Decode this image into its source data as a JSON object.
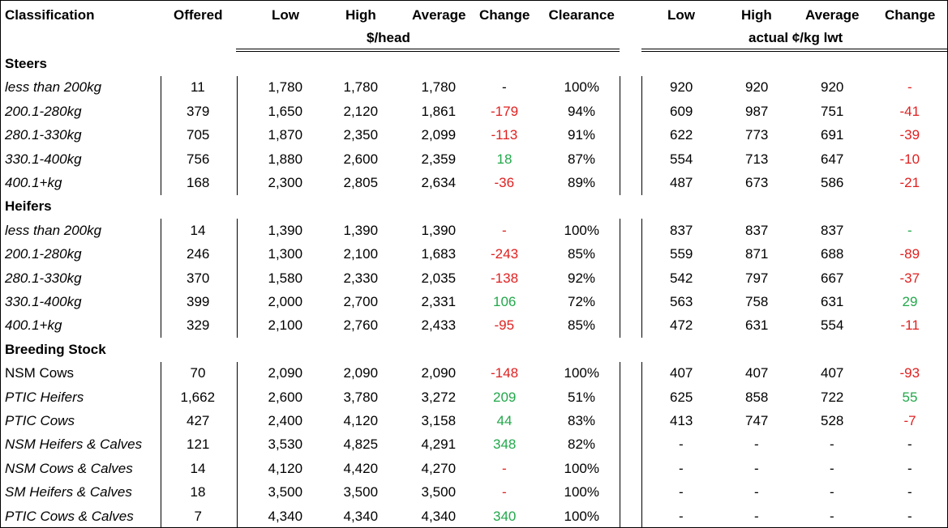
{
  "header": {
    "columns": [
      "Classification",
      "Offered",
      "Low",
      "High",
      "Average",
      "Change",
      "Clearance",
      "Low",
      "High",
      "Average",
      "Change"
    ],
    "group_head": "$/head",
    "group_kg": "actual ¢/kg lwt"
  },
  "sections": [
    {
      "title": "Steers",
      "rows": [
        {
          "italic": true,
          "cells": [
            "less than 200kg",
            "11",
            "1,780",
            "1,780",
            "1,780",
            "-",
            "100%",
            "920",
            "920",
            "920",
            "-"
          ],
          "change_colors": [
            "#000000",
            "#e02020"
          ]
        },
        {
          "italic": true,
          "cells": [
            "200.1-280kg",
            "379",
            "1,650",
            "2,120",
            "1,861",
            "-179",
            "94%",
            "609",
            "987",
            "751",
            "-41"
          ],
          "change_colors": [
            "#e02020",
            "#e02020"
          ]
        },
        {
          "italic": true,
          "cells": [
            "280.1-330kg",
            "705",
            "1,870",
            "2,350",
            "2,099",
            "-113",
            "91%",
            "622",
            "773",
            "691",
            "-39"
          ],
          "change_colors": [
            "#e02020",
            "#e02020"
          ]
        },
        {
          "italic": true,
          "cells": [
            "330.1-400kg",
            "756",
            "1,880",
            "2,600",
            "2,359",
            "18",
            "87%",
            "554",
            "713",
            "647",
            "-10"
          ],
          "change_colors": [
            "#22a84a",
            "#e02020"
          ]
        },
        {
          "italic": true,
          "cells": [
            "400.1+kg",
            "168",
            "2,300",
            "2,805",
            "2,634",
            "-36",
            "89%",
            "487",
            "673",
            "586",
            "-21"
          ],
          "change_colors": [
            "#e02020",
            "#e02020"
          ]
        }
      ]
    },
    {
      "title": "Heifers",
      "rows": [
        {
          "italic": true,
          "cells": [
            "less than 200kg",
            "14",
            "1,390",
            "1,390",
            "1,390",
            "-",
            "100%",
            "837",
            "837",
            "837",
            "-"
          ],
          "change_colors": [
            "#e02020",
            "#22a84a"
          ]
        },
        {
          "italic": true,
          "cells": [
            "200.1-280kg",
            "246",
            "1,300",
            "2,100",
            "1,683",
            "-243",
            "85%",
            "559",
            "871",
            "688",
            "-89"
          ],
          "change_colors": [
            "#e02020",
            "#e02020"
          ]
        },
        {
          "italic": true,
          "cells": [
            "280.1-330kg",
            "370",
            "1,580",
            "2,330",
            "2,035",
            "-138",
            "92%",
            "542",
            "797",
            "667",
            "-37"
          ],
          "change_colors": [
            "#e02020",
            "#e02020"
          ]
        },
        {
          "italic": true,
          "cells": [
            "330.1-400kg",
            "399",
            "2,000",
            "2,700",
            "2,331",
            "106",
            "72%",
            "563",
            "758",
            "631",
            "29"
          ],
          "change_colors": [
            "#22a84a",
            "#22a84a"
          ]
        },
        {
          "italic": true,
          "cells": [
            "400.1+kg",
            "329",
            "2,100",
            "2,760",
            "2,433",
            "-95",
            "85%",
            "472",
            "631",
            "554",
            "-11"
          ],
          "change_colors": [
            "#e02020",
            "#e02020"
          ]
        }
      ]
    },
    {
      "title": "Breeding Stock",
      "rows": [
        {
          "italic": false,
          "cells": [
            "NSM Cows",
            "70",
            "2,090",
            "2,090",
            "2,090",
            "-148",
            "100%",
            "407",
            "407",
            "407",
            "-93"
          ],
          "change_colors": [
            "#e02020",
            "#e02020"
          ]
        },
        {
          "italic": true,
          "cells": [
            "PTIC Heifers",
            "1,662",
            "2,600",
            "3,780",
            "3,272",
            "209",
            "51%",
            "625",
            "858",
            "722",
            "55"
          ],
          "change_colors": [
            "#22a84a",
            "#22a84a"
          ]
        },
        {
          "italic": true,
          "cells": [
            "PTIC Cows",
            "427",
            "2,400",
            "4,120",
            "3,158",
            "44",
            "83%",
            "413",
            "747",
            "528",
            "-7"
          ],
          "change_colors": [
            "#22a84a",
            "#e02020"
          ]
        },
        {
          "italic": true,
          "cells": [
            "NSM Heifers & Calves",
            "121",
            "3,530",
            "4,825",
            "4,291",
            "348",
            "82%",
            "-",
            "-",
            "-",
            "-"
          ],
          "change_colors": [
            "#22a84a",
            "#000000"
          ]
        },
        {
          "italic": true,
          "cells": [
            "NSM Cows & Calves",
            "14",
            "4,120",
            "4,420",
            "4,270",
            "-",
            "100%",
            "-",
            "-",
            "-",
            "-"
          ],
          "change_colors": [
            "#e02020",
            "#000000"
          ]
        },
        {
          "italic": true,
          "cells": [
            "SM Heifers & Calves",
            "18",
            "3,500",
            "3,500",
            "3,500",
            "-",
            "100%",
            "-",
            "-",
            "-",
            "-"
          ],
          "change_colors": [
            "#e02020",
            "#000000"
          ]
        },
        {
          "italic": true,
          "cells": [
            "PTIC Cows & Calves",
            "7",
            "4,340",
            "4,340",
            "4,340",
            "340",
            "100%",
            "-",
            "-",
            "-",
            "-"
          ],
          "change_colors": [
            "#22a84a",
            "#000000"
          ]
        }
      ]
    }
  ]
}
